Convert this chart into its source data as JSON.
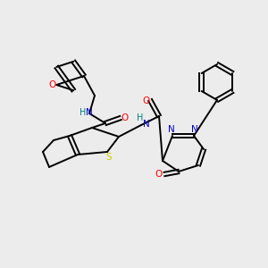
{
  "bg_color": "#ececec",
  "atom_colors": {
    "C": "#000000",
    "N": "#0000cc",
    "O": "#ff0000",
    "S": "#cccc00",
    "H": "#008080"
  },
  "bond_color": "#000000",
  "figsize": [
    3.0,
    3.0
  ],
  "dpi": 100
}
